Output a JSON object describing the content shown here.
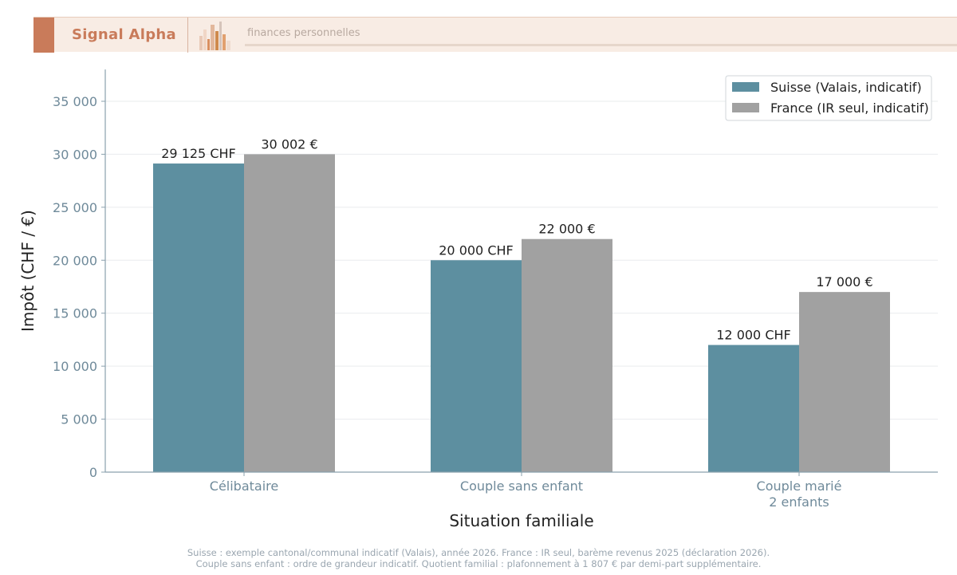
{
  "header": {
    "brand": "Signal Alpha",
    "tagline": "finances personnelles",
    "accent_color": "#c97b5a",
    "logo_icon": "bar-chart-logo-icon"
  },
  "chart_data": {
    "type": "bar",
    "categories": [
      [
        "Célibataire"
      ],
      [
        "Couple sans enfant"
      ],
      [
        "Couple marié",
        "2 enfants"
      ]
    ],
    "series": [
      {
        "name": "Suisse (Valais, indicatif)",
        "color": "#5d8fa0",
        "values": [
          29125,
          20000,
          12000
        ],
        "labels": [
          "29 125 CHF",
          "20 000 CHF",
          "12 000 CHF"
        ]
      },
      {
        "name": "France (IR seul, indicatif)",
        "color": "#a1a1a1",
        "values": [
          30002,
          22000,
          17000
        ],
        "labels": [
          "30 002 €",
          "22 000 €",
          "17 000 €"
        ]
      }
    ],
    "xlabel": "Situation familiale",
    "ylabel": "Impôt (CHF / €)",
    "ylim": [
      0,
      35000
    ],
    "yticks": [
      0,
      5000,
      10000,
      15000,
      20000,
      25000,
      30000,
      35000
    ],
    "ytick_labels": [
      "0",
      "5 000",
      "10 000",
      "15 000",
      "20 000",
      "25 000",
      "30 000",
      "35 000"
    ],
    "grid": true,
    "legend_position": "top-right"
  },
  "footnotes": [
    "Suisse : exemple cantonal/communal indicatif (Valais), année 2026. France : IR seul, barème revenus 2025 (déclaration 2026).",
    "Couple sans enfant : ordre de grandeur indicatif. Quotient familial : plafonnement à 1 807 € par demi-part supplémentaire."
  ]
}
